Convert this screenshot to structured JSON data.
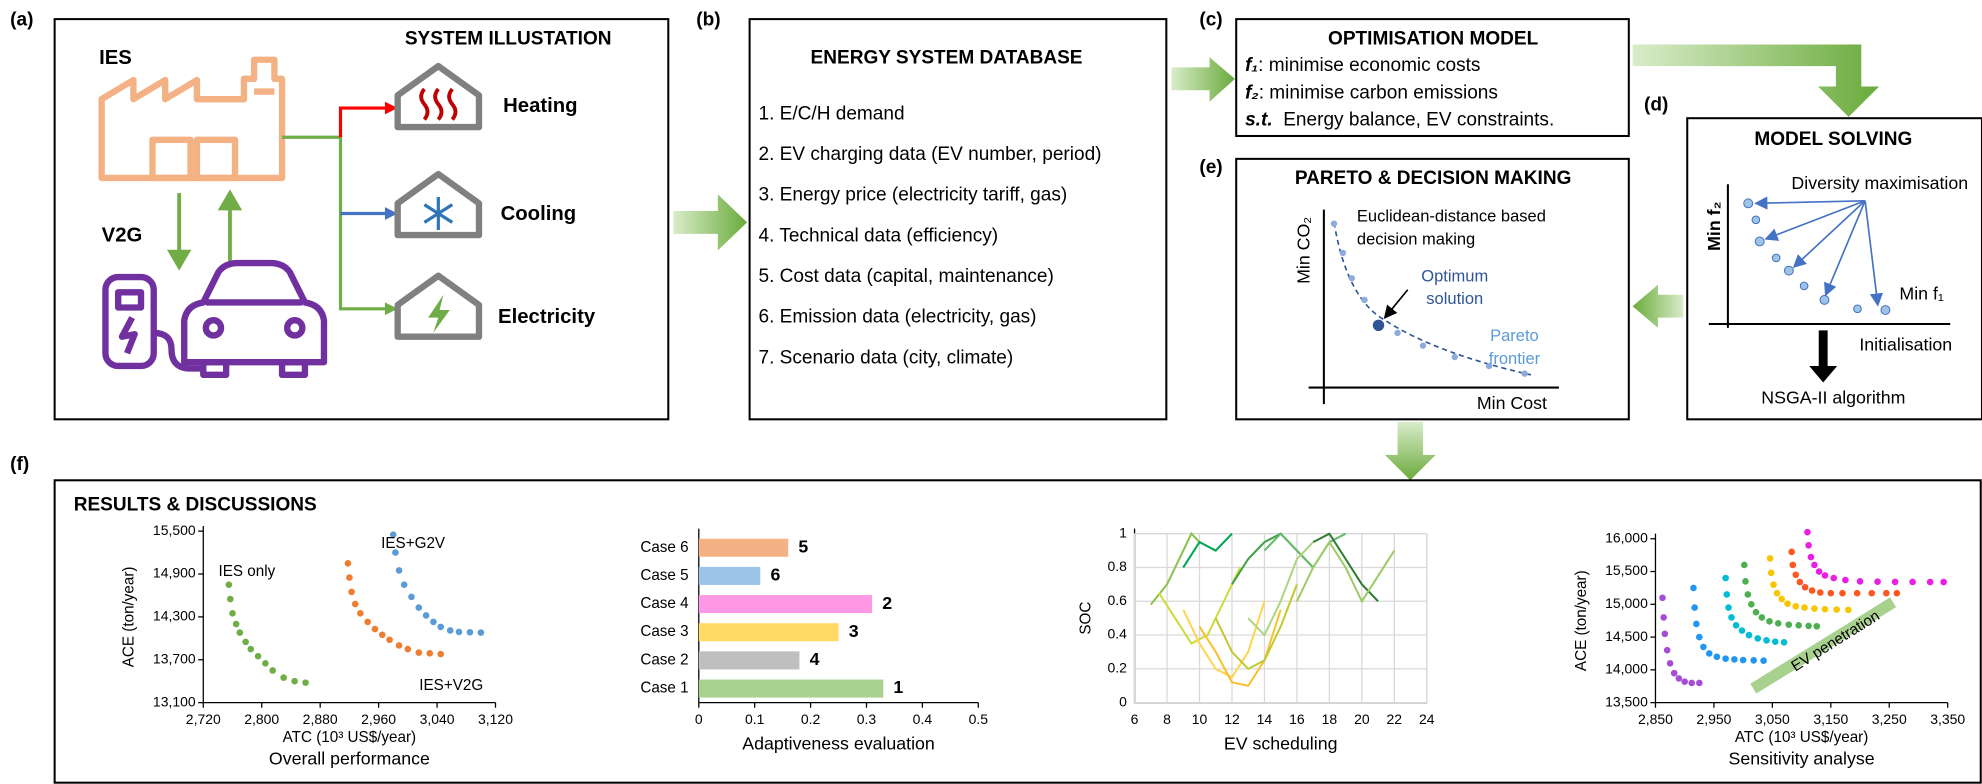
{
  "panels": {
    "a": {
      "tag": "(a)",
      "title": "SYSTEM ILLUSTATION",
      "ies": "IES",
      "v2g": "V2G",
      "loads": [
        "Heating",
        "Cooling",
        "Electricity"
      ]
    },
    "b": {
      "tag": "(b)",
      "title": "ENERGY SYSTEM DATABASE",
      "items": [
        "1. E/C/H demand",
        "2. EV charging data (EV number, period)",
        "3. Energy price (electricity tariff, gas)",
        "4. Technical data (efficiency)",
        "5. Cost data (capital, maintenance)",
        "6. Emission data (electricity, gas)",
        "7. Scenario data (city, climate)"
      ]
    },
    "c": {
      "tag": "(c)",
      "title": "OPTIMISATION MODEL",
      "lines": [
        {
          "label": "f₁",
          "text": ": minimise economic costs"
        },
        {
          "label": "f₂",
          "text": ": minimise carbon emissions"
        },
        {
          "label": "s.t.",
          "text": "  Energy balance, EV constraints."
        }
      ]
    },
    "d": {
      "tag": "(d)",
      "title": "MODEL SOLVING",
      "y_axis": "Min f₂",
      "x_axis": "Min f₁",
      "note": "Diversity maximisation",
      "step": "Initialisation",
      "algorithm": "NSGA-II algorithm"
    },
    "e": {
      "tag": "(e)",
      "title": "PARETO & DECISION MAKING",
      "y_axis": "Min CO₂",
      "x_axis": "Min Cost",
      "note": [
        "Euclidean-distance based",
        "decision making"
      ],
      "optimum": [
        "Optimum",
        "solution"
      ],
      "frontier": [
        "Pareto",
        "frontier"
      ]
    },
    "f": {
      "tag": "(f)",
      "title": "RESULTS & DISCUSSIONS",
      "charts": [
        {
          "type": "scatter",
          "caption": "Overall performance",
          "xlabel": "ATC (10³ US$/year)",
          "ylabel": "ACE (ton/year)",
          "xlim": [
            2720,
            3120
          ],
          "ylim": [
            13100,
            15500
          ],
          "xticks": [
            {
              "value": 2720,
              "label": "2,720"
            },
            {
              "value": 2800,
              "label": "2,800"
            },
            {
              "value": 2880,
              "label": "2,880"
            },
            {
              "value": 2960,
              "label": "2,960"
            },
            {
              "value": 3040,
              "label": "3,040"
            },
            {
              "value": 3120,
              "label": "3,120"
            }
          ],
          "yticks": [
            {
              "value": 13100,
              "label": "13,100"
            },
            {
              "value": 13700,
              "label": "13,700"
            },
            {
              "value": 14300,
              "label": "14,300"
            },
            {
              "value": 14900,
              "label": "14,900"
            },
            {
              "value": 15500,
              "label": "15,500"
            }
          ],
          "series": [
            {
              "name": "IES only",
              "color": "#70ad47",
              "x": [
                2755,
                2757,
                2760,
                2765,
                2770,
                2778,
                2785,
                2795,
                2805,
                2815,
                2830,
                2845,
                2860
              ],
              "values": [
                14750,
                14550,
                14350,
                14200,
                14080,
                13950,
                13850,
                13750,
                13650,
                13550,
                13450,
                13400,
                13380
              ]
            },
            {
              "name": "IES+G2V",
              "color": "#5b9bd5",
              "x": [
                2980,
                2983,
                2988,
                2995,
                3005,
                3015,
                3025,
                3035,
                3045,
                3058,
                3070,
                3085,
                3100
              ],
              "values": [
                15450,
                15200,
                14950,
                14750,
                14580,
                14430,
                14320,
                14230,
                14160,
                14110,
                14090,
                14085,
                14080
              ]
            },
            {
              "name": "IES+V2G",
              "color": "#ed7d31",
              "x": [
                2918,
                2920,
                2923,
                2928,
                2935,
                2945,
                2955,
                2965,
                2975,
                2988,
                3000,
                3015,
                3030,
                3045
              ],
              "values": [
                15050,
                14850,
                14650,
                14480,
                14350,
                14230,
                14130,
                14050,
                13980,
                13900,
                13850,
                13800,
                13790,
                13780
              ]
            }
          ]
        },
        {
          "type": "bar",
          "orientation": "horizontal",
          "caption": "Adaptiveness evaluation",
          "categories": [
            "Case 1",
            "Case 2",
            "Case 3",
            "Case 4",
            "Case 5",
            "Case 6"
          ],
          "values": [
            0.33,
            0.18,
            0.25,
            0.31,
            0.11,
            0.16
          ],
          "ranks": [
            1,
            4,
            3,
            2,
            6,
            5
          ],
          "colors": [
            "#a9d18e",
            "#bfbfbf",
            "#ffd966",
            "#ff99e6",
            "#9dc3e6",
            "#f4b183"
          ],
          "xlim": [
            0,
            0.5
          ],
          "xticks": [
            0,
            0.1,
            0.2,
            0.3,
            0.4,
            0.5
          ]
        },
        {
          "type": "line",
          "caption": "EV scheduling",
          "ylabel": "SOC",
          "grid": true,
          "xlim": [
            6,
            24
          ],
          "ylim": [
            0,
            1
          ],
          "xticks": [
            6,
            8,
            10,
            12,
            14,
            16,
            18,
            20,
            22,
            24
          ],
          "yticks": [
            0,
            0.2,
            0.4,
            0.6,
            0.8,
            1
          ],
          "series": [
            {
              "color": "#8bc34a",
              "x": [
                7,
                8,
                9,
                9.5,
                10
              ],
              "values": [
                0.58,
                0.7,
                0.9,
                1,
                0.95
              ]
            },
            {
              "color": "#cddc39",
              "x": [
                7.5,
                8.5,
                9.5,
                10.5,
                11.5,
                12.5
              ],
              "values": [
                0.65,
                0.5,
                0.35,
                0.4,
                0.6,
                0.8
              ]
            },
            {
              "color": "#ffd54f",
              "x": [
                9,
                10,
                11,
                12,
                13,
                14
              ],
              "values": [
                0.55,
                0.35,
                0.2,
                0.15,
                0.3,
                0.6
              ]
            },
            {
              "color": "#fbc02d",
              "x": [
                10,
                11,
                12,
                13,
                14,
                15
              ],
              "values": [
                0.45,
                0.3,
                0.12,
                0.1,
                0.25,
                0.55
              ]
            },
            {
              "color": "#c0ca33",
              "x": [
                11,
                12,
                13,
                14,
                15,
                16
              ],
              "values": [
                0.5,
                0.3,
                0.2,
                0.25,
                0.45,
                0.7
              ]
            },
            {
              "color": "#43a047",
              "x": [
                12,
                13,
                14,
                15,
                16,
                17
              ],
              "values": [
                0.7,
                0.85,
                0.95,
                1,
                0.9,
                0.8
              ]
            },
            {
              "color": "#66bb6a",
              "x": [
                14,
                15,
                16,
                17,
                18,
                19
              ],
              "values": [
                0.9,
                1,
                0.9,
                0.8,
                0.95,
                1
              ]
            },
            {
              "color": "#2e7d32",
              "x": [
                17,
                18,
                19,
                20,
                21
              ],
              "values": [
                0.95,
                1,
                0.85,
                0.7,
                0.6
              ]
            },
            {
              "color": "#9ccc65",
              "x": [
                16,
                17,
                18,
                19,
                20,
                21,
                22
              ],
              "values": [
                0.6,
                0.8,
                0.95,
                0.8,
                0.6,
                0.75,
                0.9
              ]
            },
            {
              "color": "#aed581",
              "x": [
                13,
                14,
                15,
                16,
                17
              ],
              "values": [
                0.5,
                0.4,
                0.6,
                0.85,
                0.95
              ]
            },
            {
              "color": "#00a651",
              "x": [
                9,
                10,
                11,
                12
              ],
              "values": [
                0.8,
                0.95,
                0.9,
                1
              ]
            }
          ]
        },
        {
          "type": "scatter",
          "caption": "Sensitivity analyse",
          "xlabel": "ATC (10³ US$/year)",
          "ylabel": "ACE (ton/year)",
          "annotation": "EV penetration",
          "xlim": [
            2850,
            3350
          ],
          "ylim": [
            13500,
            16000
          ],
          "xticks": [
            {
              "value": 2850,
              "label": "2,850"
            },
            {
              "value": 2950,
              "label": "2,950"
            },
            {
              "value": 3050,
              "label": "3,050"
            },
            {
              "value": 3150,
              "label": "3,150"
            },
            {
              "value": 3250,
              "label": "3,250"
            },
            {
              "value": 3350,
              "label": "3,350"
            }
          ],
          "yticks": [
            {
              "value": 13500,
              "label": "13,500"
            },
            {
              "value": 14000,
              "label": "14,000"
            },
            {
              "value": 14500,
              "label": "14,500"
            },
            {
              "value": 15000,
              "label": "15,000"
            },
            {
              "value": 15500,
              "label": "15,500"
            },
            {
              "value": 16000,
              "label": "16,000"
            }
          ],
          "series": [
            {
              "color": "#a64dd8",
              "x": [
                2862,
                2864,
                2866,
                2870,
                2875,
                2882,
                2890,
                2900,
                2912,
                2925
              ],
              "values": [
                15100,
                14800,
                14550,
                14300,
                14100,
                13950,
                13870,
                13820,
                13800,
                13800
              ]
            },
            {
              "color": "#2196f3",
              "x": [
                2915,
                2917,
                2920,
                2925,
                2932,
                2942,
                2955,
                2970,
                2985,
                3000,
                3018,
                3035
              ],
              "values": [
                15250,
                14950,
                14700,
                14500,
                14350,
                14250,
                14200,
                14170,
                14160,
                14150,
                14145,
                14140
              ]
            },
            {
              "color": "#00bcd4",
              "x": [
                2970,
                2972,
                2975,
                2980,
                2988,
                2998,
                3010,
                3025,
                3040,
                3055,
                3070
              ],
              "values": [
                15400,
                15150,
                14950,
                14800,
                14680,
                14600,
                14530,
                14480,
                14450,
                14430,
                14420
              ]
            },
            {
              "color": "#4caf50",
              "x": [
                3002,
                3004,
                3008,
                3014,
                3022,
                3032,
                3045,
                3060,
                3078,
                3095,
                3112,
                3126
              ],
              "values": [
                15600,
                15350,
                15150,
                15000,
                14880,
                14800,
                14740,
                14710,
                14690,
                14680,
                14670,
                14665
              ]
            },
            {
              "color": "#f7c600",
              "x": [
                3046,
                3048,
                3052,
                3058,
                3066,
                3076,
                3090,
                3105,
                3122,
                3140,
                3160,
                3180
              ],
              "values": [
                15700,
                15480,
                15300,
                15170,
                15080,
                15010,
                14970,
                14950,
                14935,
                14925,
                14920,
                14915
              ]
            },
            {
              "color": "#ff5722",
              "x": [
                3083,
                3085,
                3090,
                3097,
                3106,
                3118,
                3132,
                3150,
                3170,
                3195,
                3220,
                3245,
                3263
              ],
              "values": [
                15800,
                15600,
                15450,
                15340,
                15260,
                15210,
                15180,
                15170,
                15170,
                15170,
                15170,
                15170,
                15170
              ]
            },
            {
              "color": "#e91ee3",
              "x": [
                3110,
                3112,
                3116,
                3122,
                3130,
                3140,
                3155,
                3175,
                3200,
                3230,
                3260,
                3290,
                3320,
                3343
              ],
              "values": [
                16100,
                15900,
                15720,
                15600,
                15500,
                15440,
                15400,
                15370,
                15350,
                15345,
                15342,
                15341,
                15340,
                15340
              ]
            }
          ]
        }
      ]
    }
  }
}
